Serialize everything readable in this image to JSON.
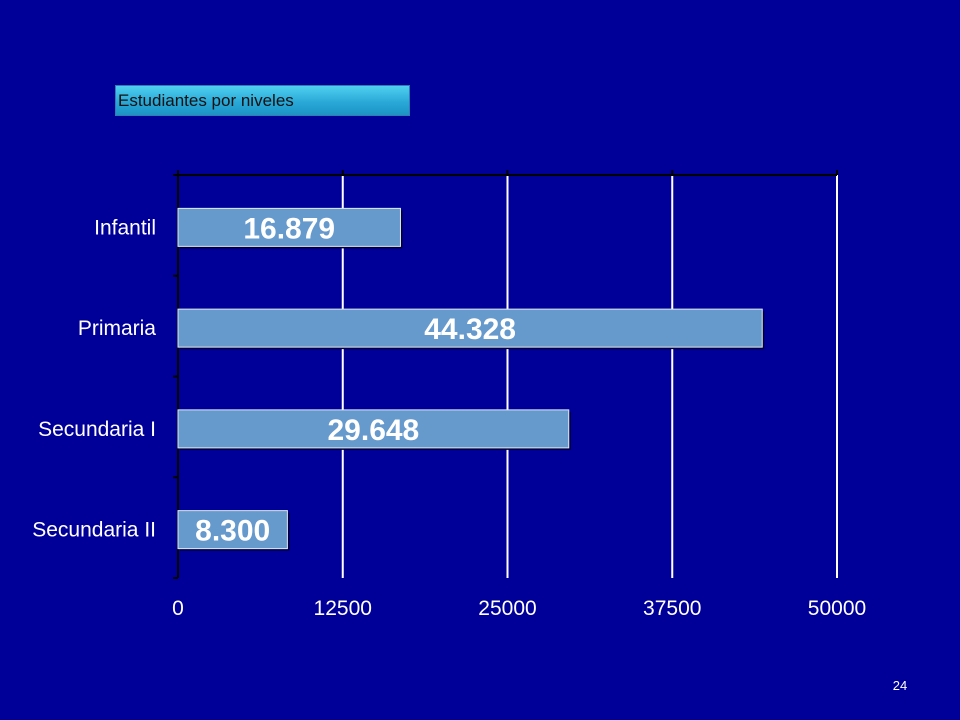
{
  "slide": {
    "title": "Estudiantes por niveles",
    "page_number": "24"
  },
  "colors": {
    "background": "#000099",
    "bar": "#6699cc",
    "gridline": "#ffffff",
    "text": "#ffffff",
    "title_box": "#33b0dd"
  },
  "chart_data": {
    "type": "bar",
    "orientation": "horizontal",
    "categories": [
      "Infantil",
      "Primaria",
      "Secundaria I",
      "Secundaria II"
    ],
    "values": [
      16879,
      44328,
      29648,
      8300
    ],
    "data_labels": [
      "16.879",
      "44.328",
      "29.648",
      "8.300"
    ],
    "x_ticks": [
      0,
      12500,
      25000,
      37500,
      50000
    ],
    "x_tick_labels": [
      "0",
      "12500",
      "25000",
      "37500",
      "50000"
    ],
    "xlim": [
      0,
      50000
    ],
    "grid": true,
    "legend": "none"
  }
}
